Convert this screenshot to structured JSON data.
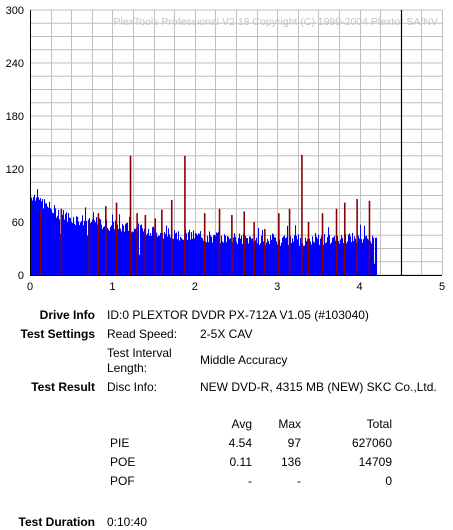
{
  "chart_data": {
    "type": "bar",
    "title": "PlexTools Professional V2.18 Copyright (C) 1999-2004 Plextor SA/NV",
    "xlabel": "",
    "ylabel": "",
    "xlim": [
      0,
      5
    ],
    "ylim": [
      0,
      300
    ],
    "xticks": [
      "0",
      "1",
      "2",
      "3",
      "4",
      "5"
    ],
    "yticks": [
      "0",
      "60",
      "120",
      "180",
      "240",
      "300"
    ],
    "grid": true,
    "disc_end_x": 4.5,
    "colors": {
      "pie": "#0000ff",
      "poe": "#8b0000",
      "grid": "#c0c0c0",
      "marker": "#000000"
    },
    "series": [
      {
        "key": "pie_profile",
        "color": "#0000ff",
        "points": [
          [
            0,
            92
          ],
          [
            0.1,
            85
          ],
          [
            0.3,
            72
          ],
          [
            0.5,
            64
          ],
          [
            0.8,
            59
          ],
          [
            1.0,
            56
          ],
          [
            1.3,
            52
          ],
          [
            1.6,
            48
          ],
          [
            2.0,
            44
          ],
          [
            2.5,
            41
          ],
          [
            3.0,
            40
          ],
          [
            3.5,
            40
          ],
          [
            4.0,
            41
          ],
          [
            4.2,
            40
          ]
        ]
      },
      {
        "key": "poe_spikes",
        "color": "#8b0000",
        "points": [
          [
            0.13,
            72
          ],
          [
            0.38,
            75
          ],
          [
            0.72,
            60
          ],
          [
            0.83,
            70
          ],
          [
            0.92,
            78
          ],
          [
            1.05,
            82
          ],
          [
            1.22,
            135
          ],
          [
            1.3,
            70
          ],
          [
            1.4,
            68
          ],
          [
            1.52,
            64
          ],
          [
            1.6,
            74
          ],
          [
            1.72,
            85
          ],
          [
            1.88,
            135
          ],
          [
            2.12,
            70
          ],
          [
            2.3,
            75
          ],
          [
            2.45,
            68
          ],
          [
            2.6,
            72
          ],
          [
            2.72,
            60
          ],
          [
            2.85,
            52
          ],
          [
            3.02,
            70
          ],
          [
            3.15,
            75
          ],
          [
            3.3,
            136
          ],
          [
            3.38,
            60
          ],
          [
            3.55,
            70
          ],
          [
            3.72,
            75
          ],
          [
            3.82,
            82
          ],
          [
            3.97,
            86
          ],
          [
            4.12,
            84
          ]
        ]
      }
    ]
  },
  "info": {
    "drive_info_label": "Drive Info",
    "drive_info_value": "ID:0 PLEXTOR DVDR PX-712A V1.05 (#103040)",
    "test_settings_label": "Test Settings",
    "read_speed_label": "Read Speed:",
    "read_speed_value": "2-5X CAV",
    "interval_label_1": "Test Interval",
    "interval_label_2": "Length:",
    "interval_value": "Middle Accuracy",
    "test_result_label": "Test Result",
    "disc_info_label": "Disc Info:",
    "disc_info_value": "NEW DVD-R, 4315 MB (NEW) SKC Co.,Ltd."
  },
  "results": {
    "headers": {
      "avg": "Avg",
      "max": "Max",
      "total": "Total"
    },
    "rows": [
      {
        "name": "PIE",
        "avg": "4.54",
        "max": "97",
        "total": "627060"
      },
      {
        "name": "POE",
        "avg": "0.11",
        "max": "136",
        "total": "14709"
      },
      {
        "name": "POF",
        "avg": "-",
        "max": "-",
        "total": "0"
      }
    ]
  },
  "duration": {
    "label": "Test Duration",
    "value": "0:10:40"
  }
}
